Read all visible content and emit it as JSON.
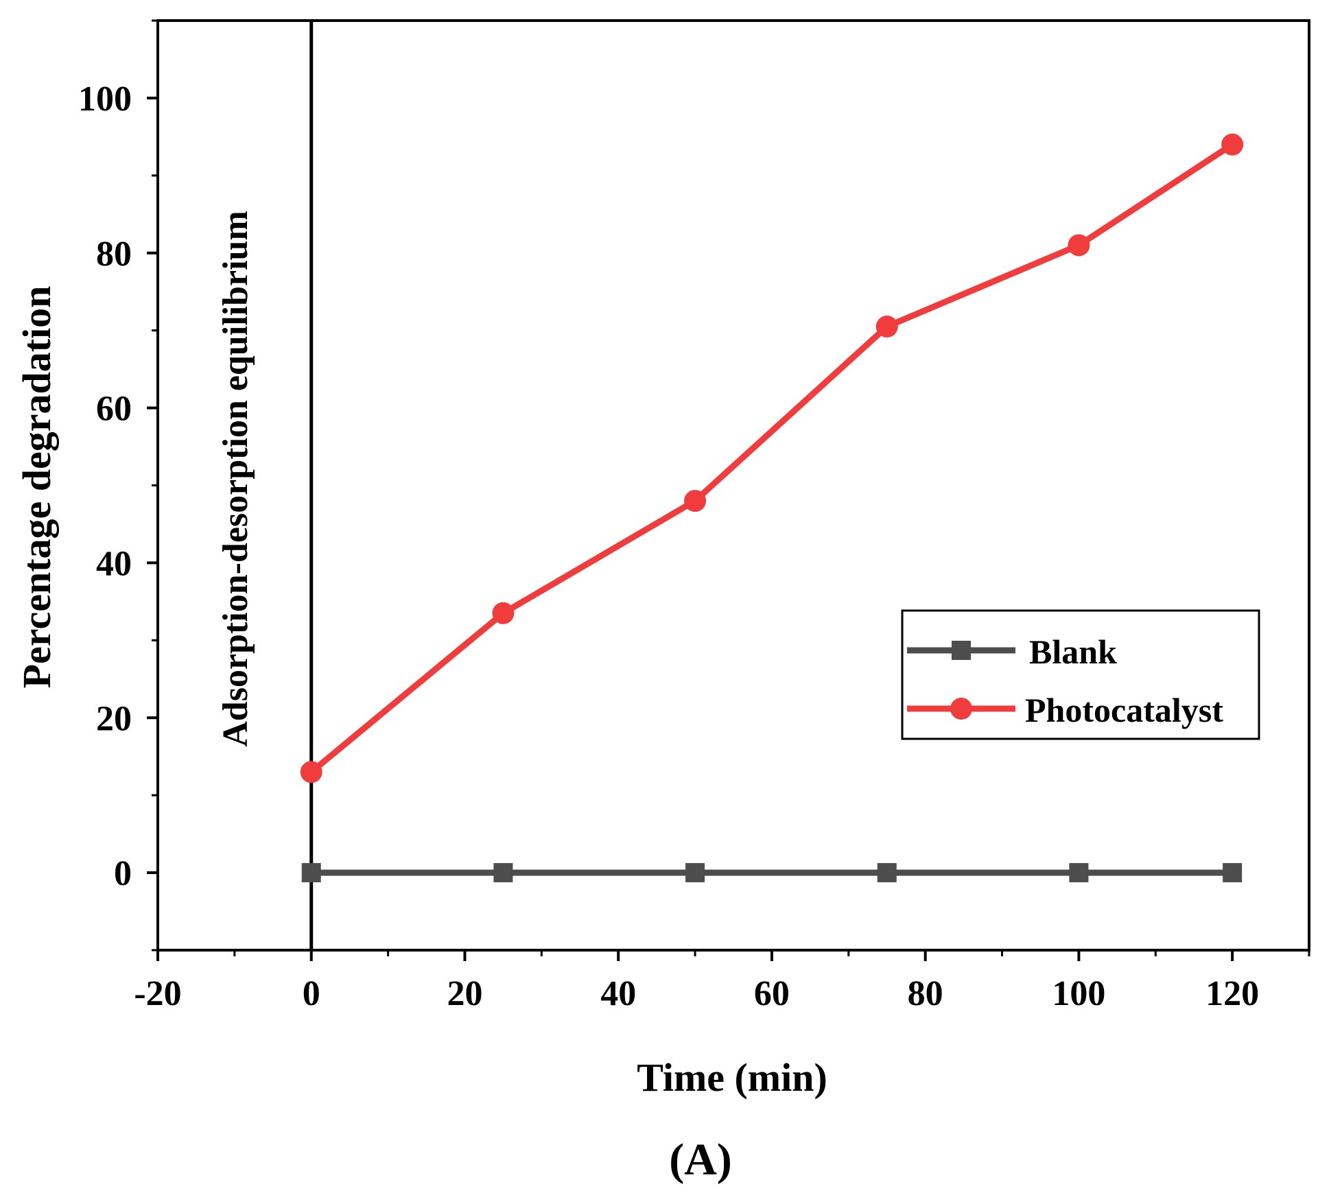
{
  "chart_data": {
    "type": "line",
    "title": "",
    "xlabel": "Time (min)",
    "ylabel": "Percentage degradation",
    "xlim": [
      -20,
      130
    ],
    "ylim": [
      -10,
      110
    ],
    "x_ticks": [
      -20,
      0,
      20,
      40,
      60,
      80,
      100,
      120
    ],
    "y_ticks": [
      0,
      20,
      40,
      60,
      80,
      100
    ],
    "x_tick_labels": [
      "-20",
      "0",
      "20",
      "40",
      "60",
      "80",
      "100",
      "120"
    ],
    "y_tick_labels": [
      "0",
      "20",
      "40",
      "60",
      "80",
      "100"
    ],
    "x": [
      0,
      25,
      50,
      75,
      100,
      120
    ],
    "series": [
      {
        "name": "Blank",
        "marker": "square",
        "color": "#4d4d4d",
        "values": [
          0,
          0,
          0,
          0,
          0,
          0
        ]
      },
      {
        "name": "Photocatalyst",
        "marker": "circle",
        "color": "#f03c3c",
        "values": [
          13,
          33.5,
          48,
          70.5,
          81,
          94
        ]
      }
    ],
    "annotation": {
      "text": "Adsorption-desorption equilibrium",
      "x": 0
    },
    "legend_position": "lower-right",
    "grid": false
  },
  "panel_label": "(A)"
}
